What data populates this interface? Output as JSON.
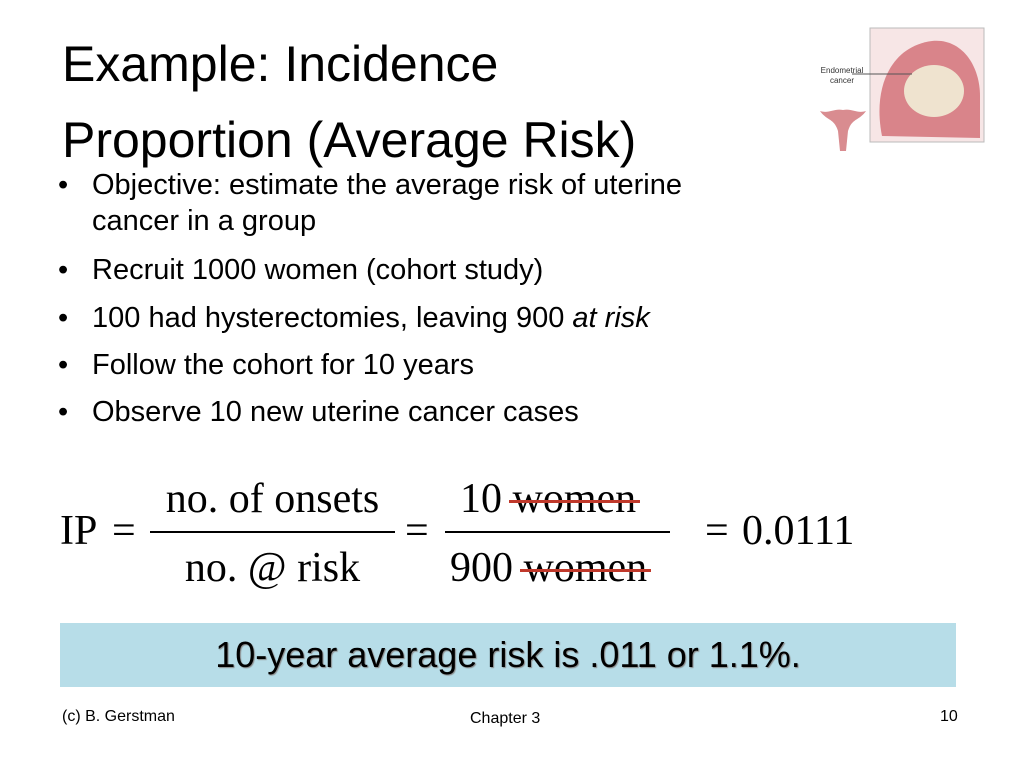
{
  "title": [
    "Example: Incidence",
    "Proportion (Average Risk)"
  ],
  "image": {
    "label": [
      "Endometrial",
      "cancer"
    ]
  },
  "bullets": [
    [
      "Objective: estimate the average risk of uterine",
      "cancer in a group"
    ],
    [
      "Recruit 1000 women (cohort study)"
    ],
    [
      "100 had hysterectomies, leaving 900",
      "at risk"
    ],
    [
      "Follow the cohort for 10 years"
    ],
    [
      "Observe 10 new uterine cancer cases"
    ]
  ],
  "formula": {
    "lhs": "IP",
    "equals": "=",
    "numerator1": "no. of onsets",
    "denominator1": "no. @ risk",
    "numerator2": "10",
    "denominator2": "900",
    "unit": "women",
    "result": "0.0111"
  },
  "conclusion": "10-year average risk is .011 or 1.1%.",
  "footer": {
    "left": "(c) B. Gerstman",
    "center": "Chapter 3",
    "right": "10"
  }
}
